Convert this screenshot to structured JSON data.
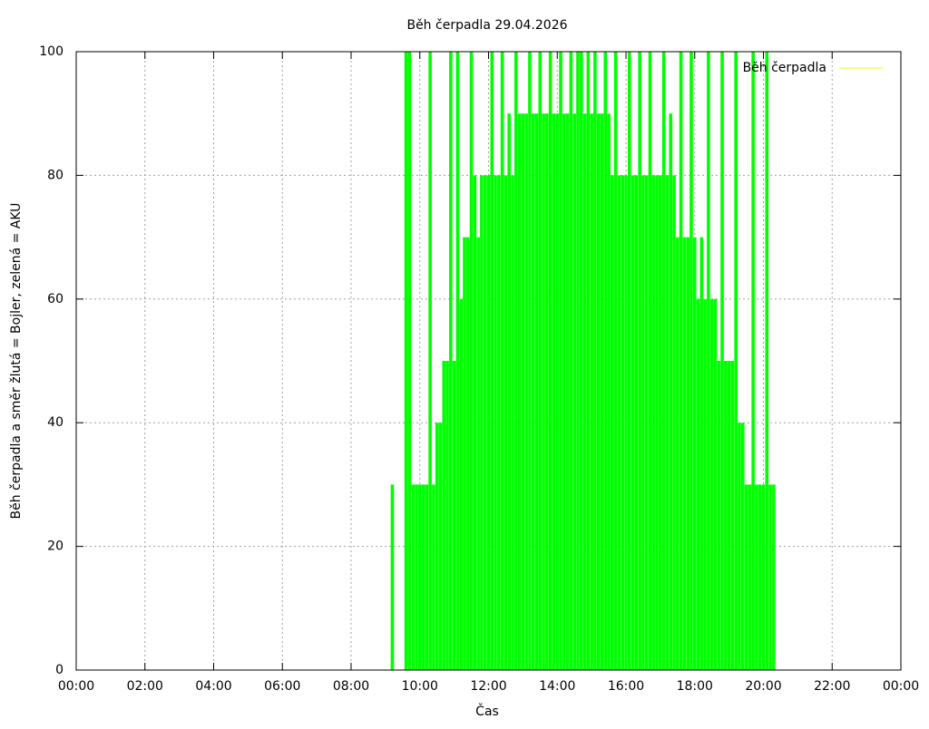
{
  "chart_data": {
    "type": "impulse",
    "title": "Běh čerpadla 29.04.2026",
    "x_label": "Čas",
    "y_label": "Běh čerpadla a směr žlutá = Bojler, zelená = AKU",
    "xlim": [
      0,
      24
    ],
    "xticks": [
      {
        "value": 0,
        "label": "00:00"
      },
      {
        "value": 2,
        "label": "02:00"
      },
      {
        "value": 4,
        "label": "04:00"
      },
      {
        "value": 6,
        "label": "06:00"
      },
      {
        "value": 8,
        "label": "08:00"
      },
      {
        "value": 10,
        "label": "10:00"
      },
      {
        "value": 12,
        "label": "12:00"
      },
      {
        "value": 14,
        "label": "14:00"
      },
      {
        "value": 16,
        "label": "16:00"
      },
      {
        "value": 18,
        "label": "18:00"
      },
      {
        "value": 20,
        "label": "20:00"
      },
      {
        "value": 22,
        "label": "22:00"
      },
      {
        "value": 24,
        "label": "00:00"
      }
    ],
    "ylim": [
      0,
      100
    ],
    "yticks": [
      0,
      20,
      40,
      60,
      80,
      100
    ],
    "grid": true,
    "legend_position": "top-right",
    "series": [
      {
        "name": "Běh čerpadla",
        "color": "#00ff00",
        "legend_color": "#ffff00",
        "x": [
          9.2,
          9.6,
          9.7,
          9.8,
          9.9,
          10.0,
          10.1,
          10.2,
          10.3,
          10.4,
          10.5,
          10.6,
          10.7,
          10.8,
          10.9,
          11.0,
          11.1,
          11.2,
          11.3,
          11.4,
          11.5,
          11.6,
          11.7,
          11.8,
          11.9,
          12.0,
          12.1,
          12.2,
          12.3,
          12.4,
          12.5,
          12.6,
          12.7,
          12.8,
          12.9,
          13.0,
          13.1,
          13.2,
          13.3,
          13.4,
          13.5,
          13.6,
          13.7,
          13.8,
          13.9,
          14.0,
          14.1,
          14.2,
          14.3,
          14.4,
          14.5,
          14.6,
          14.7,
          14.8,
          14.9,
          15.0,
          15.1,
          15.2,
          15.3,
          15.4,
          15.5,
          15.6,
          15.7,
          15.8,
          15.9,
          16.0,
          16.1,
          16.2,
          16.3,
          16.4,
          16.5,
          16.6,
          16.7,
          16.8,
          16.9,
          17.0,
          17.1,
          17.2,
          17.3,
          17.4,
          17.5,
          17.6,
          17.7,
          17.8,
          17.9,
          18.0,
          18.1,
          18.2,
          18.3,
          18.4,
          18.5,
          18.6,
          18.7,
          18.8,
          18.9,
          19.0,
          19.1,
          19.2,
          19.3,
          19.4,
          19.5,
          19.6,
          19.7,
          19.8,
          19.9,
          20.0,
          20.1,
          20.2,
          20.3
        ],
        "values": [
          30,
          100,
          100,
          30,
          30,
          30,
          30,
          30,
          100,
          30,
          40,
          40,
          50,
          50,
          100,
          50,
          100,
          60,
          70,
          70,
          100,
          80,
          70,
          80,
          80,
          80,
          100,
          80,
          80,
          100,
          80,
          90,
          80,
          100,
          90,
          90,
          90,
          100,
          90,
          90,
          100,
          90,
          90,
          100,
          90,
          90,
          100,
          90,
          90,
          100,
          90,
          100,
          100,
          90,
          100,
          90,
          100,
          90,
          90,
          100,
          90,
          80,
          100,
          80,
          80,
          80,
          100,
          80,
          80,
          100,
          80,
          80,
          100,
          80,
          80,
          80,
          100,
          80,
          90,
          80,
          70,
          100,
          70,
          70,
          100,
          70,
          60,
          70,
          60,
          100,
          60,
          60,
          50,
          100,
          50,
          50,
          50,
          100,
          40,
          40,
          30,
          30,
          100,
          30,
          30,
          30,
          100,
          30,
          30
        ]
      }
    ]
  }
}
